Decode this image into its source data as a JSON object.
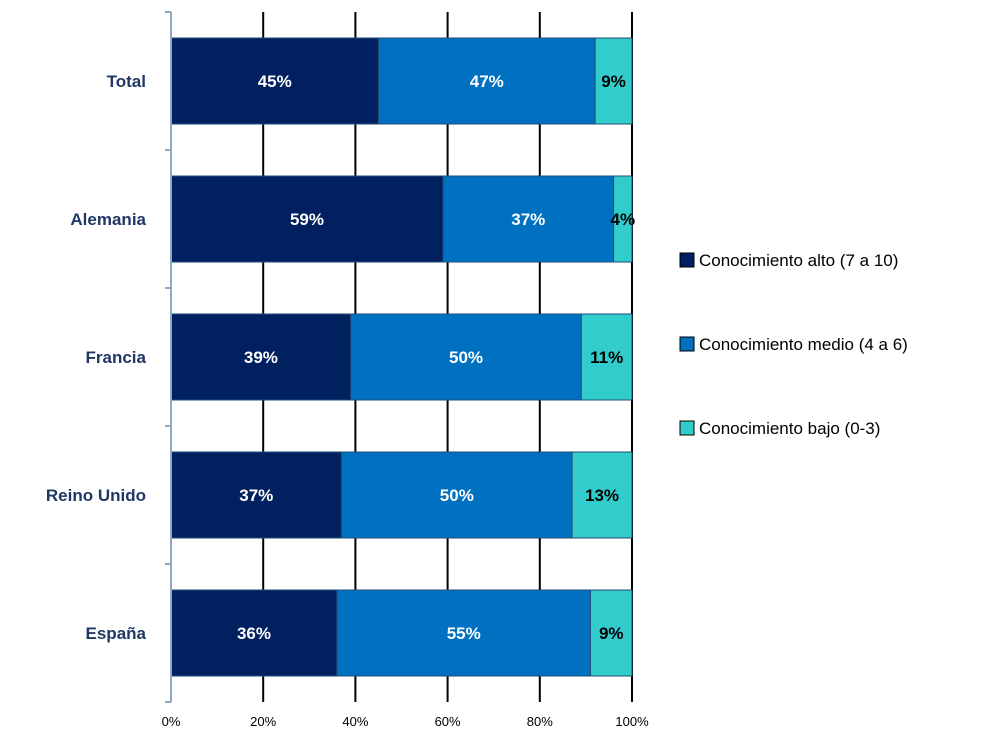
{
  "chart_data": {
    "type": "bar",
    "orientation": "horizontal",
    "stacked": true,
    "percent": true,
    "categories": [
      "Total",
      "Alemania",
      "Francia",
      "Reino Unido",
      "España"
    ],
    "series": [
      {
        "name": "Conocimiento alto (7 a 10)",
        "color": "#002060",
        "label_color": "#ffffff",
        "values": [
          45,
          59,
          39,
          37,
          36
        ],
        "labels": [
          "45%",
          "59%",
          "39%",
          "37%",
          "36%"
        ]
      },
      {
        "name": "Conocimiento medio (4 a 6)",
        "color": "#0070C0",
        "label_color": "#ffffff",
        "values": [
          47,
          37,
          50,
          50,
          55
        ],
        "labels": [
          "47%",
          "37%",
          "50%",
          "50%",
          "55%"
        ]
      },
      {
        "name": "Conocimiento bajo (0-3)",
        "color": "#33CCCC",
        "label_color": "#000000",
        "values": [
          9,
          4,
          11,
          13,
          9
        ],
        "labels": [
          "9%",
          "4%",
          "11%",
          "13%",
          "9%"
        ]
      }
    ],
    "xlim": [
      0,
      100
    ],
    "x_ticks": [
      0,
      20,
      40,
      60,
      80,
      100
    ],
    "x_tick_labels": [
      "0%",
      "20%",
      "40%",
      "60%",
      "80%",
      "100%"
    ],
    "xlabel": "",
    "ylabel": "",
    "grid": "vertical",
    "legend_position": "right"
  }
}
